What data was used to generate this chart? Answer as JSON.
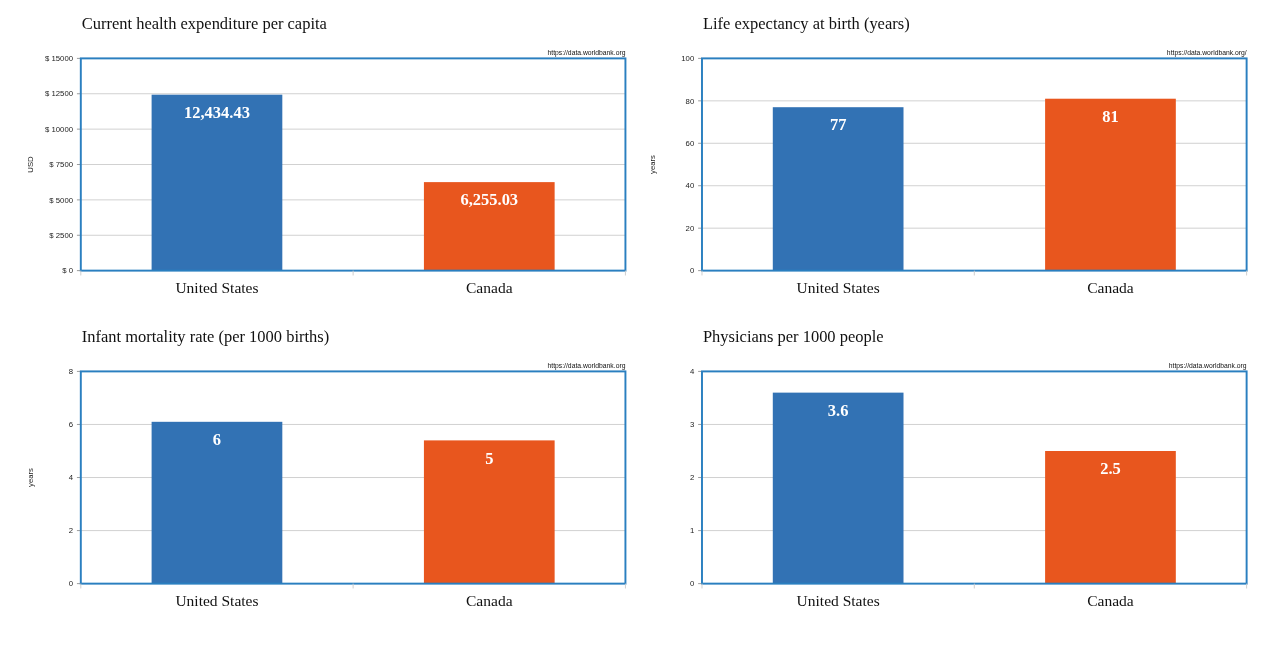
{
  "chart_data": [
    {
      "type": "bar",
      "title": "Current health expenditure per capita",
      "ylabel": "USD",
      "categories": [
        "United States",
        "Canada"
      ],
      "values": [
        12434.43,
        6255.03
      ],
      "value_labels": [
        "12,434.43",
        "6,255.03"
      ],
      "colors": [
        "#3272b4",
        "#e8561e"
      ],
      "ylim": [
        0,
        15000
      ],
      "yticks": [
        {
          "value": 0,
          "label": "$ 0"
        },
        {
          "value": 2500,
          "label": "$ 2500"
        },
        {
          "value": 5000,
          "label": "$ 5000"
        },
        {
          "value": 7500,
          "label": "$ 7500"
        },
        {
          "value": 10000,
          "label": "$ 10000"
        },
        {
          "value": 12500,
          "label": "$ 12500"
        },
        {
          "value": 15000,
          "label": "$ 15000"
        }
      ],
      "grid": "y",
      "annotations": [
        "https://data.worldbank.org"
      ]
    },
    {
      "type": "bar",
      "title": "Life expectancy at birth (years)",
      "ylabel": "years",
      "categories": [
        "United States",
        "Canada"
      ],
      "values": [
        77,
        81
      ],
      "data_labels": true,
      "colors": [
        "#3272b4",
        "#e8561e"
      ],
      "ylim": [
        0,
        100
      ],
      "yticks": [
        0,
        20,
        40,
        60,
        80,
        100
      ],
      "grid": "y",
      "annotations": [
        "https://data.worldbank.org/"
      ]
    },
    {
      "type": "bar",
      "title": "Infant mortality rate (per 1000 births)",
      "ylabel": "years",
      "categories": [
        "United States",
        "Canada"
      ],
      "values": [
        6.1,
        5.4
      ],
      "value_labels": [
        "6",
        "5"
      ],
      "colors": [
        "#3272b4",
        "#e8561e"
      ],
      "ylim": [
        0,
        8
      ],
      "yticks": [
        0,
        2,
        4,
        6,
        8
      ],
      "grid": "y",
      "annotations": [
        "https://data.worldbank.org"
      ]
    },
    {
      "type": "bar",
      "title": "Physicians per 1000 people",
      "categories": [
        "United States",
        "Canada"
      ],
      "values": [
        3.6,
        2.5
      ],
      "data_labels": true,
      "colors": [
        "#3272b4",
        "#e8561e"
      ],
      "ylim": [
        0,
        4
      ],
      "yticks": [
        0,
        1,
        2,
        3,
        4
      ],
      "grid": "y",
      "annotations": [
        "https://data.worldbank.org"
      ]
    }
  ]
}
